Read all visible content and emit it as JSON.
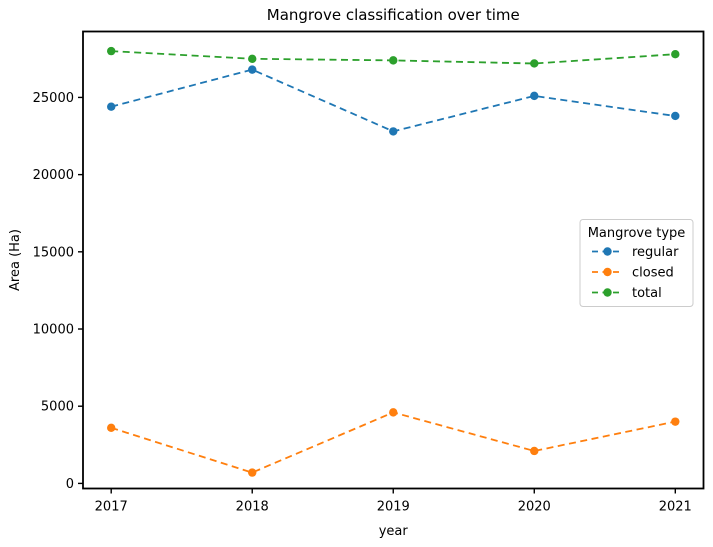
{
  "chart_data": {
    "type": "line",
    "title": "Mangrove classification over time",
    "xlabel": "year",
    "ylabel": "Area (Ha)",
    "legend_title": "Mangrove type",
    "legend_position": "right",
    "line_style": "dashed",
    "marker": "circle",
    "grid": false,
    "x": [
      2017,
      2018,
      2019,
      2020,
      2021
    ],
    "xticks": [
      2017,
      2018,
      2019,
      2020,
      2021
    ],
    "yticks": [
      0,
      5000,
      10000,
      15000,
      20000,
      25000
    ],
    "xlim": [
      2016.8,
      2021.2
    ],
    "ylim": [
      -330,
      29270
    ],
    "series": [
      {
        "name": "regular",
        "color": "#1f77b4",
        "values": [
          24400,
          26800,
          22800,
          25100,
          23800
        ]
      },
      {
        "name": "closed",
        "color": "#ff7f0e",
        "values": [
          3600,
          700,
          4600,
          2100,
          4000
        ]
      },
      {
        "name": "total",
        "color": "#2ca02c",
        "values": [
          28000,
          27500,
          27400,
          27200,
          27800
        ]
      }
    ],
    "spine_color": "#000000",
    "background_color": "#ffffff",
    "legend_border_color": "#cccccc"
  }
}
